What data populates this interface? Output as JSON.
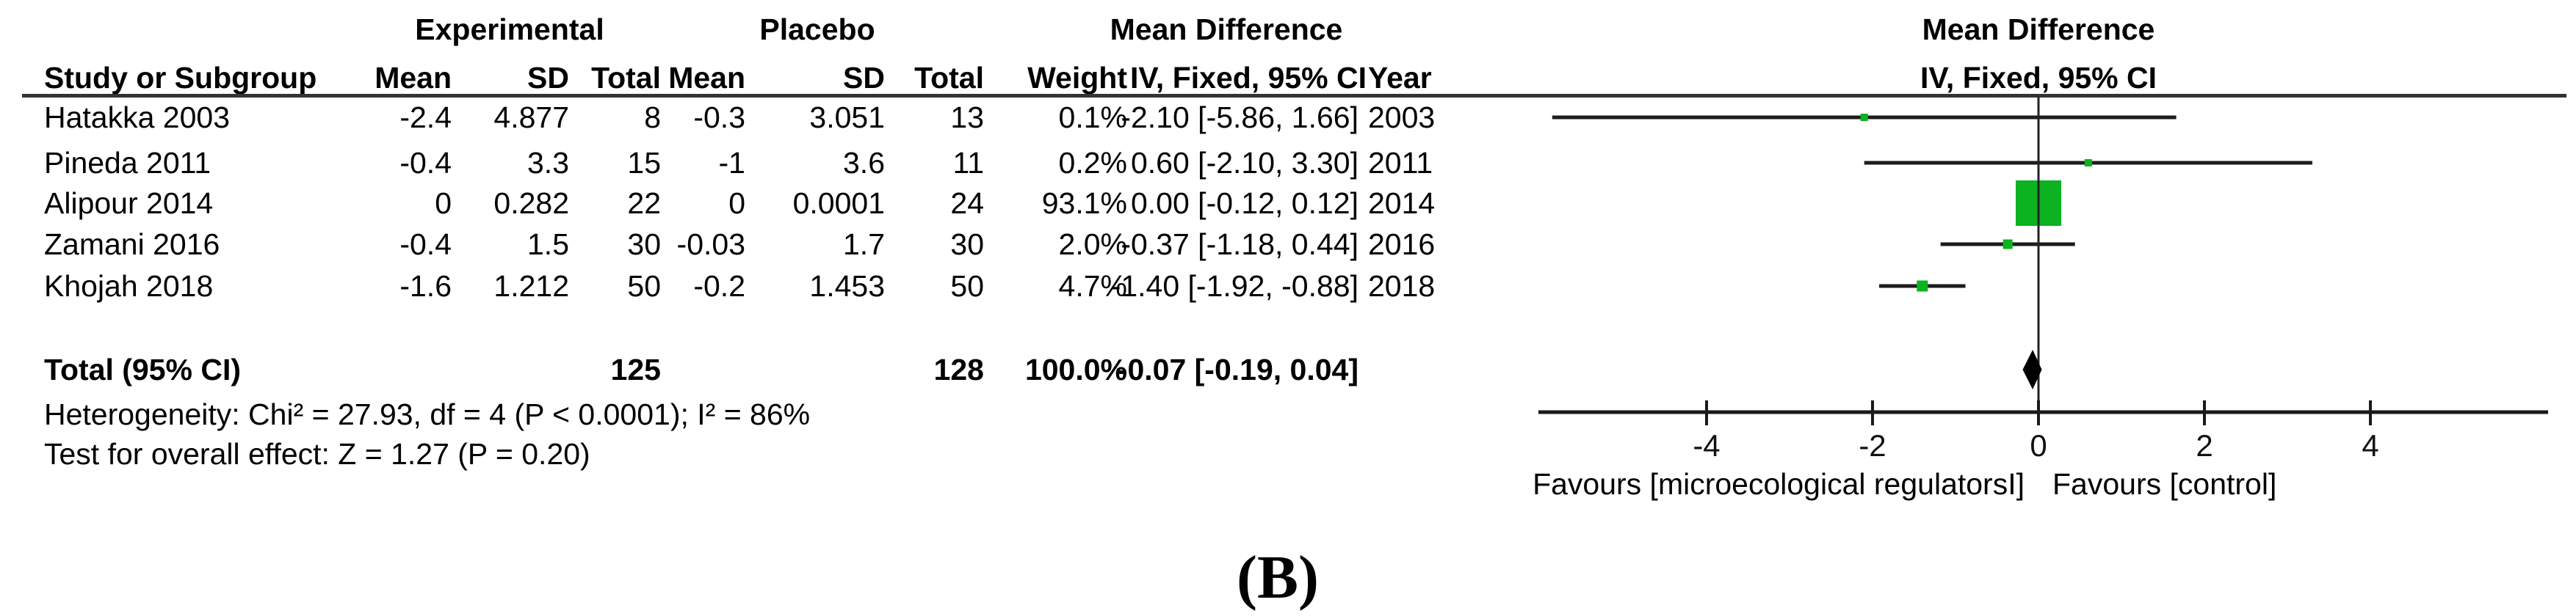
{
  "panel_label": "(B)",
  "table": {
    "group_headers": {
      "experimental": "Experimental",
      "placebo": "Placebo",
      "mean_difference": "Mean Difference"
    },
    "column_headers": {
      "study": "Study or Subgroup",
      "mean": "Mean",
      "sd": "SD",
      "total": "Total",
      "weight": "Weight",
      "ci": "IV, Fixed, 95% CI",
      "year": "Year"
    },
    "rows": [
      {
        "study": "Hatakka 2003",
        "mean1": "-2.4",
        "sd1": "4.877",
        "total1": "8",
        "mean2": "-0.3",
        "sd2": "3.051",
        "total2": "13",
        "weight": "0.1%",
        "ci": "-2.10 [-5.86, 1.66]",
        "year": "2003"
      },
      {
        "study": "Pineda 2011",
        "mean1": "-0.4",
        "sd1": "3.3",
        "total1": "15",
        "mean2": "-1",
        "sd2": "3.6",
        "total2": "11",
        "weight": "0.2%",
        "ci": "0.60 [-2.10, 3.30]",
        "year": "2011"
      },
      {
        "study": "Alipour 2014",
        "mean1": "0",
        "sd1": "0.282",
        "total1": "22",
        "mean2": "0",
        "sd2": "0.0001",
        "total2": "24",
        "weight": "93.1%",
        "ci": "0.00 [-0.12, 0.12]",
        "year": "2014"
      },
      {
        "study": "Zamani 2016",
        "mean1": "-0.4",
        "sd1": "1.5",
        "total1": "30",
        "mean2": "-0.03",
        "sd2": "1.7",
        "total2": "30",
        "weight": "2.0%",
        "ci": "-0.37 [-1.18, 0.44]",
        "year": "2016"
      },
      {
        "study": "Khojah 2018",
        "mean1": "-1.6",
        "sd1": "1.212",
        "total1": "50",
        "mean2": "-0.2",
        "sd2": "1.453",
        "total2": "50",
        "weight": "4.7%",
        "ci": "-1.40 [-1.92, -0.88]",
        "year": "2018"
      }
    ],
    "total_row": {
      "label": "Total (95% CI)",
      "total1": "125",
      "total2": "128",
      "weight": "100.0%",
      "ci": "-0.07 [-0.19, 0.04]"
    },
    "heterogeneity": "Heterogeneity: Chi² = 27.93, df = 4 (P < 0.0001); I² = 86%",
    "overall_effect": "Test for overall effect: Z = 1.27 (P = 0.20)"
  },
  "plot": {
    "header_line1": "Mean Difference",
    "header_line2": "IV, Fixed, 95% CI",
    "favours_left": "Favours [microecological regulatorsI]",
    "favours_right": "Favours [control]",
    "marker_color": "#0cb220",
    "line_color": "#1c1c1c",
    "diamond_color": "#000000"
  },
  "chart_data": {
    "type": "forest",
    "effect_measure": "Mean Difference, IV, Fixed, 95% CI",
    "x_ticks": [
      -4,
      -2,
      0,
      2,
      4
    ],
    "xlim": [
      -6,
      6.2
    ],
    "studies": [
      {
        "name": "Hatakka 2003",
        "year": 2003,
        "md": -2.1,
        "ci_low": -5.86,
        "ci_high": 1.66,
        "weight_pct": 0.1
      },
      {
        "name": "Pineda 2011",
        "year": 2011,
        "md": 0.6,
        "ci_low": -2.1,
        "ci_high": 3.3,
        "weight_pct": 0.2
      },
      {
        "name": "Alipour 2014",
        "year": 2014,
        "md": 0.0,
        "ci_low": -0.12,
        "ci_high": 0.12,
        "weight_pct": 93.1
      },
      {
        "name": "Zamani 2016",
        "year": 2016,
        "md": -0.37,
        "ci_low": -1.18,
        "ci_high": 0.44,
        "weight_pct": 2.0
      },
      {
        "name": "Khojah 2018",
        "year": 2018,
        "md": -1.4,
        "ci_low": -1.92,
        "ci_high": -0.88,
        "weight_pct": 4.7
      }
    ],
    "total": {
      "label": "Total (95% CI)",
      "md": -0.07,
      "ci_low": -0.19,
      "ci_high": 0.04,
      "weight_pct": 100.0
    }
  }
}
